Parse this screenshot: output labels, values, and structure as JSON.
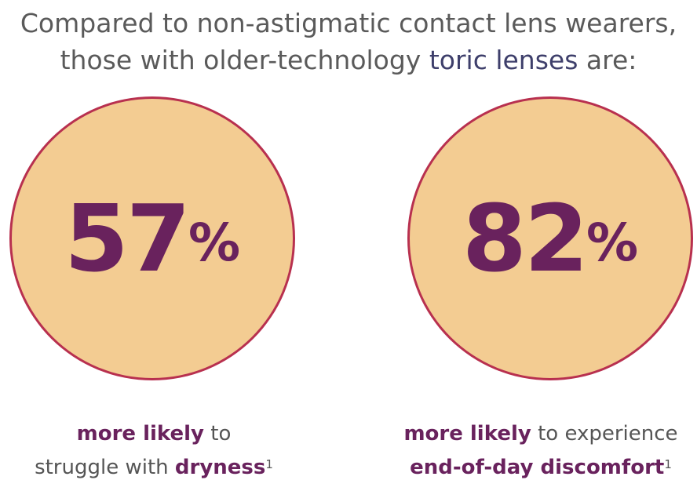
{
  "title": {
    "line1": "Compared to non-astigmatic contact lens wearers,",
    "line2_before": "those with older-technology ",
    "line2_highlight": "toric lenses",
    "line2_after": " are:"
  },
  "stats": [
    {
      "number": "57",
      "percent_sign": "%",
      "caption_bold1": "more likely",
      "caption_text1": " to",
      "caption_text2": "struggle with ",
      "caption_bold2": "dryness",
      "footnote": "1"
    },
    {
      "number": "82",
      "percent_sign": "%",
      "caption_bold1": "more likely",
      "caption_text1": " to experience",
      "caption_text2": "",
      "caption_bold2": "end-of-day discomfort",
      "footnote": "1"
    }
  ],
  "colors": {
    "circle_fill": "#f3cc92",
    "circle_border": "#b8304f",
    "accent_purple": "#69225d",
    "highlight_navy": "#3e3f6b"
  }
}
